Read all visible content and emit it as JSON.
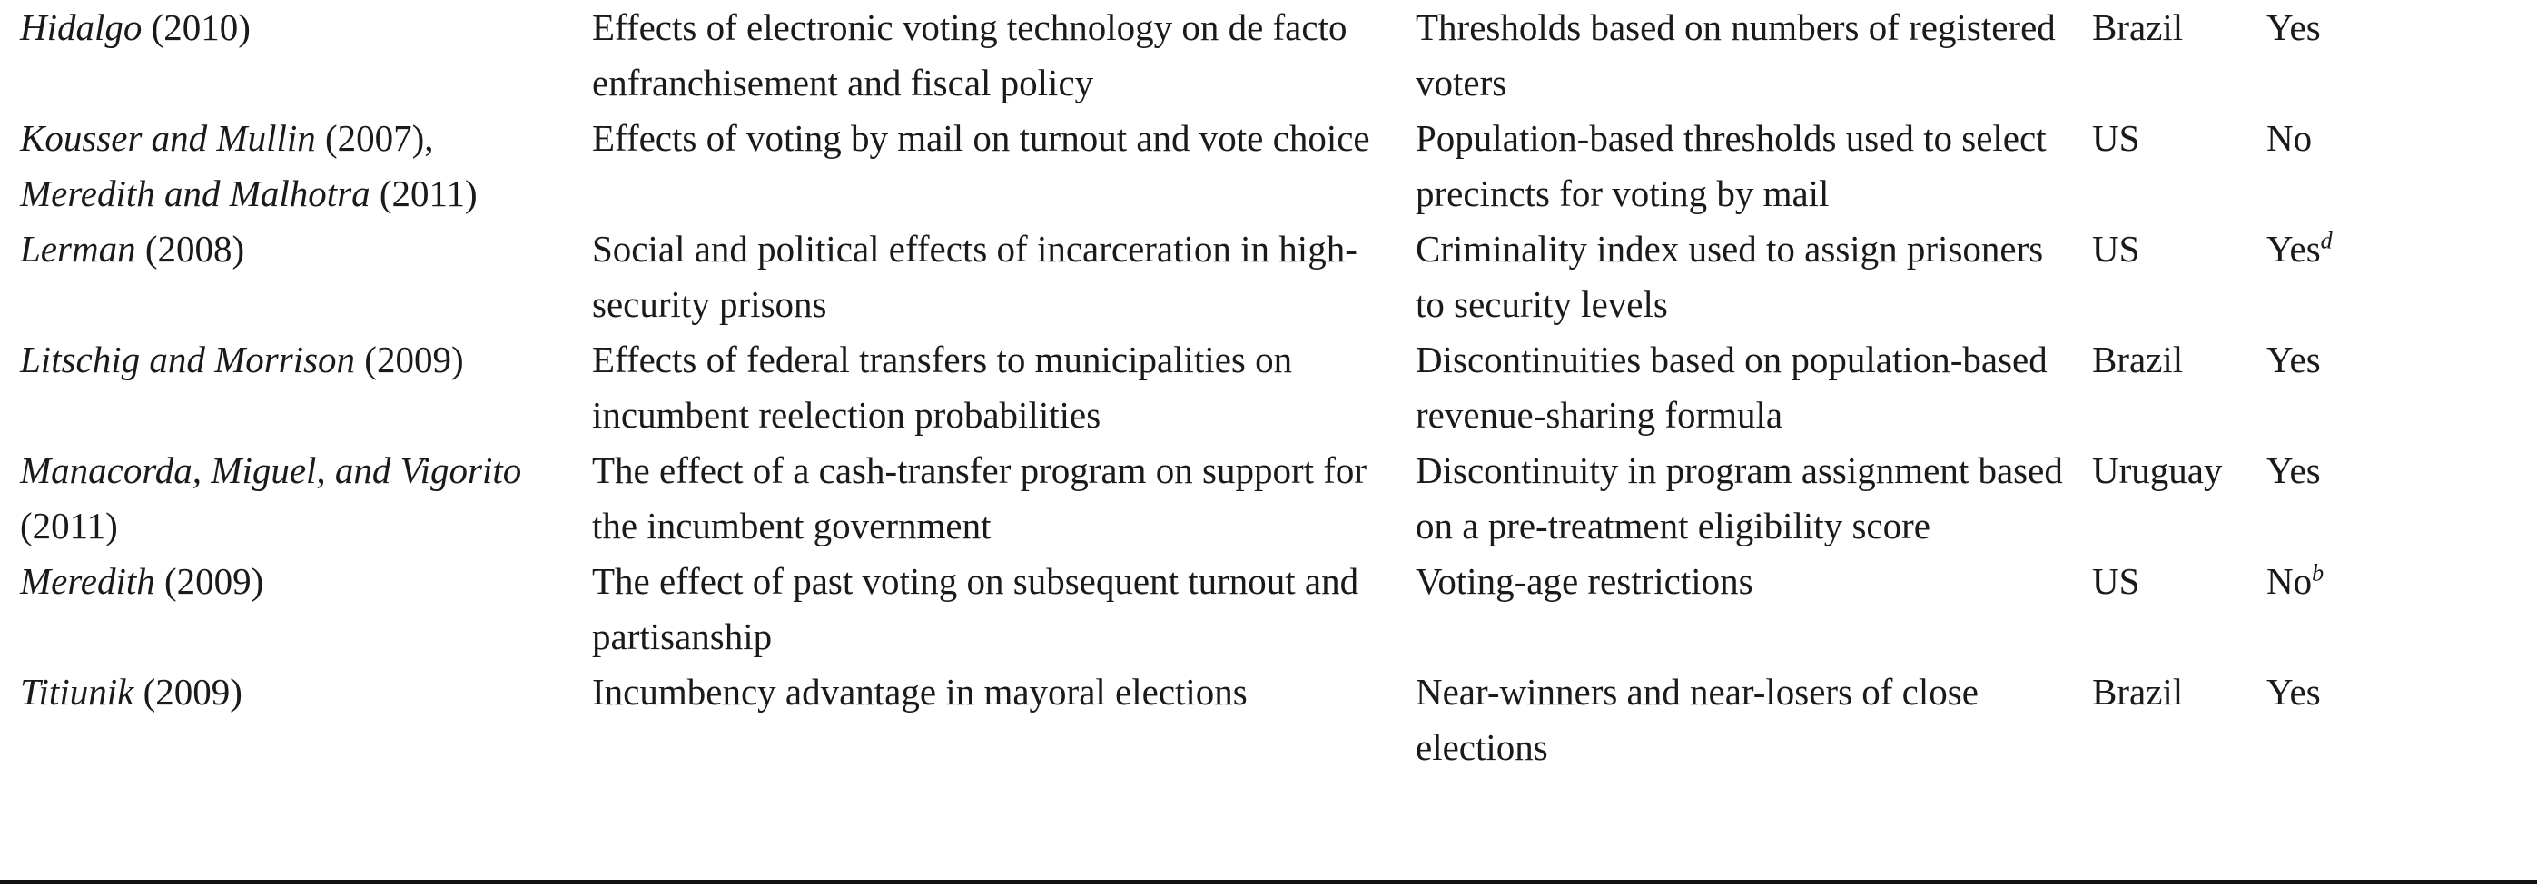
{
  "rows": [
    {
      "author": "Hidalgo",
      "year": " (2010)",
      "author2": "",
      "year2": "",
      "effect": "Effects of electronic voting technology on de facto enfranchisement and fiscal policy",
      "design": "Thresholds based on numbers of registered voters",
      "country": "Brazil",
      "data": "Yes",
      "note": ""
    },
    {
      "author": "Kousser and Mullin",
      "year": " (2007),",
      "author2": "Meredith and Malhotra",
      "year2": " (2011)",
      "effect": "Effects of voting by mail on turnout and vote choice",
      "design": "Population-based thresholds used to select precincts for voting by mail",
      "country": "US",
      "data": "No",
      "note": ""
    },
    {
      "author": "Lerman",
      "year": " (2008)",
      "author2": "",
      "year2": "",
      "effect": "Social and political effects of incarceration in high-security prisons",
      "design": "Criminality index used to assign prisoners to security levels",
      "country": "US",
      "data": "Yes",
      "note": "d"
    },
    {
      "author": "Litschig and Morrison",
      "year": " (2009)",
      "author2": "",
      "year2": "",
      "effect": "Effects of federal transfers to municipalities on incumbent reelection probabilities",
      "design": "Discontinuities based on population-based revenue-sharing formula",
      "country": "Brazil",
      "data": "Yes",
      "note": ""
    },
    {
      "author": "Manacorda, Miguel, and Vigorito",
      "year": " (2011)",
      "author2": "",
      "year2": "",
      "effect": "The effect of a cash-transfer program on support for the incumbent government",
      "design": "Discontinuity in program assignment based on a pre-treatment eligibility score",
      "country": "Uruguay",
      "data": "Yes",
      "note": ""
    },
    {
      "author": "Meredith",
      "year": " (2009)",
      "author2": "",
      "year2": "",
      "effect": "The effect of past voting on subsequent turnout and partisanship",
      "design": "Voting-age restrictions",
      "country": "US",
      "data": "No",
      "note": "b"
    },
    {
      "author": "Titiunik",
      "year": " (2009)",
      "author2": "",
      "year2": "",
      "effect": "Incumbency advantage in mayoral elections",
      "design": "Near-winners and near-losers of close elections",
      "country": "Brazil",
      "data": "Yes",
      "note": ""
    }
  ]
}
